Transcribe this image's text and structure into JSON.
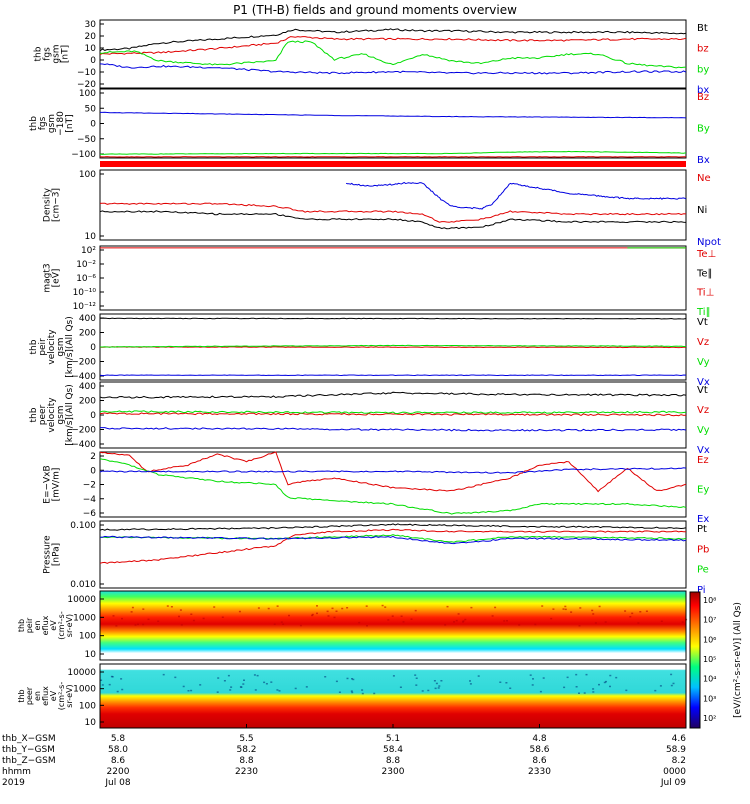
{
  "title": "P1 (TH-B) fields and ground moments overview",
  "colors": {
    "black": "#000000",
    "red": "#e00000",
    "green": "#00dd00",
    "blue": "#0000e0"
  },
  "chart_data": {
    "type": "line",
    "panels": [
      {
        "id": "p1",
        "ylabel": [
          "thb",
          "fgs",
          "gsm",
          "[nT]"
        ],
        "yticks": [
          "30",
          "20",
          "10",
          "0",
          "−10",
          "−20"
        ],
        "legend": [
          {
            "label": "Bt",
            "color": "black"
          },
          {
            "label": "bz",
            "color": "red"
          },
          {
            "label": "by",
            "color": "green"
          },
          {
            "label": "bx",
            "color": "blue"
          }
        ],
        "ylim": [
          -20,
          30
        ],
        "series": [
          {
            "name": "Bt",
            "color": "black",
            "x": [
              0,
              0.05,
              0.1,
              0.2,
              0.3,
              0.33,
              0.4,
              0.5,
              0.55,
              0.6,
              0.7,
              0.8,
              0.9,
              1
            ],
            "y": [
              8,
              9,
              13,
              16,
              19,
              23,
              21,
              23,
              22,
              22,
              21,
              21,
              21,
              20
            ]
          },
          {
            "name": "bz",
            "color": "red",
            "x": [
              0,
              0.1,
              0.2,
              0.3,
              0.33,
              0.4,
              0.5,
              0.6,
              0.7,
              0.8,
              0.9,
              1
            ],
            "y": [
              5,
              6,
              9,
              13,
              18,
              16,
              16,
              16,
              15,
              15,
              16,
              16
            ]
          },
          {
            "name": "by",
            "color": "green",
            "x": [
              0,
              0.06,
              0.1,
              0.2,
              0.3,
              0.32,
              0.36,
              0.4,
              0.45,
              0.5,
              0.55,
              0.6,
              0.65,
              0.7,
              0.75,
              0.8,
              0.85,
              0.9,
              0.95,
              1
            ],
            "y": [
              6,
              7,
              0,
              -3,
              0,
              14,
              14,
              1,
              5,
              -3,
              5,
              0,
              -2,
              2,
              2,
              5,
              5,
              -2,
              -4,
              -5
            ]
          },
          {
            "name": "bx",
            "color": "blue",
            "x": [
              0,
              0.05,
              0.1,
              0.2,
              0.3,
              0.4,
              0.5,
              0.6,
              0.7,
              0.8,
              0.9,
              1
            ],
            "y": [
              -2,
              -5,
              -4,
              -5,
              -8,
              -9,
              -8,
              -9,
              -9,
              -9,
              -8,
              -8
            ]
          }
        ]
      },
      {
        "id": "p2",
        "ylabel": [
          "thb",
          "fgs",
          "gsm",
          "−180",
          "[nT]"
        ],
        "yticks": [
          "100",
          "50",
          "0",
          "−50",
          "−100"
        ],
        "legend": [
          {
            "label": "Bz",
            "color": "red"
          },
          {
            "label": "By",
            "color": "green"
          },
          {
            "label": "Bx",
            "color": "blue"
          }
        ],
        "ylim": [
          -135,
          100
        ],
        "series": [
          {
            "name": "Bx",
            "color": "blue",
            "x": [
              0,
              0.2,
              0.4,
              0.6,
              0.8,
              1
            ],
            "y": [
              20,
              15,
              10,
              6,
              4,
              2
            ]
          },
          {
            "name": "By",
            "color": "green",
            "x": [
              0,
              0.3,
              0.6,
              0.7,
              0.8,
              1
            ],
            "y": [
              -122,
              -120,
              -120,
              -115,
              -113,
              -118
            ]
          },
          {
            "name": "Bz",
            "color": "red",
            "x": [
              0,
              1
            ],
            "y": [
              -131,
              -131
            ]
          }
        ]
      },
      {
        "id": "p3",
        "ylabel": [
          "Density",
          "[cm−3]"
        ],
        "yticks": [
          "100",
          "10"
        ],
        "legend": [
          {
            "label": "Ne",
            "color": "red"
          },
          {
            "label": "Ni",
            "color": "black"
          },
          {
            "label": "Npot",
            "color": "blue"
          }
        ],
        "ylim": [
          0.3,
          3
        ],
        "series": [
          {
            "name": "Npot",
            "color": "blue",
            "x": [
              0.42,
              0.45,
              0.48,
              0.52,
              0.55,
              0.58,
              0.6,
              0.65,
              0.67,
              0.7,
              0.72,
              0.75,
              0.8,
              0.9,
              1
            ],
            "y": [
              2.5,
              2.4,
              2.4,
              2.5,
              2.5,
              1.9,
              1.6,
              1.5,
              1.7,
              2.5,
              2.4,
              2.3,
              2.1,
              1.9,
              1.9
            ]
          },
          {
            "name": "Ne",
            "color": "red",
            "x": [
              0,
              0.1,
              0.2,
              0.3,
              0.35,
              0.4,
              0.5,
              0.55,
              0.58,
              0.6,
              0.65,
              0.67,
              0.7,
              0.8,
              0.9,
              1
            ],
            "y": [
              1.7,
              1.7,
              1.7,
              1.6,
              1.4,
              1.4,
              1.4,
              1.3,
              1.0,
              1.0,
              1.1,
              1.2,
              1.4,
              1.3,
              1.3,
              1.3
            ]
          },
          {
            "name": "Ni",
            "color": "black",
            "x": [
              0,
              0.1,
              0.2,
              0.3,
              0.35,
              0.4,
              0.5,
              0.55,
              0.58,
              0.6,
              0.65,
              0.67,
              0.7,
              0.8,
              0.9,
              1
            ],
            "y": [
              1.4,
              1.4,
              1.3,
              1.3,
              1.1,
              1.1,
              1.1,
              1.0,
              0.75,
              0.75,
              0.8,
              0.9,
              1.1,
              1.0,
              1.0,
              1.0
            ]
          }
        ]
      },
      {
        "id": "p4",
        "ylabel": [
          "magt3",
          "[eV]"
        ],
        "yticks": [
          "10²",
          "10⁻²",
          "10⁻⁶",
          "10⁻¹⁰",
          "10⁻¹²"
        ],
        "legend": [
          {
            "label": "Te⊥",
            "color": "red"
          },
          {
            "label": "Te∥",
            "color": "black"
          },
          {
            "label": "Ti⊥",
            "color": "red"
          },
          {
            "label": "Ti∥",
            "color": "green"
          }
        ],
        "ylim": [
          -14,
          3
        ],
        "series": [
          {
            "name": "Te",
            "color": "red",
            "x": [
              0,
              1
            ],
            "y": [
              2.5,
              2.5
            ]
          },
          {
            "name": "Ti",
            "color": "green",
            "x": [
              0.9,
              1
            ],
            "y": [
              2.5,
              2.5
            ]
          }
        ]
      },
      {
        "id": "p5",
        "ylabel": [
          "thb",
          "peir",
          "velocity",
          "gsm",
          "[km/s](All Qs)"
        ],
        "yticks": [
          "400",
          "200",
          "0",
          "−200",
          "−400"
        ],
        "legend": [
          {
            "label": "Vt",
            "color": "black"
          },
          {
            "label": "Vz",
            "color": "red"
          },
          {
            "label": "Vy",
            "color": "green"
          },
          {
            "label": "Vx",
            "color": "blue"
          }
        ],
        "ylim": [
          -450,
          450
        ],
        "series": [
          {
            "name": "Vt",
            "color": "black",
            "x": [
              0,
              1
            ],
            "y": [
              390,
              385
            ]
          },
          {
            "name": "Vz",
            "color": "red",
            "x": [
              0,
              1
            ],
            "y": [
              0,
              -5
            ]
          },
          {
            "name": "Vy",
            "color": "green",
            "x": [
              0,
              0.2,
              0.5,
              0.8,
              1
            ],
            "y": [
              0,
              10,
              20,
              15,
              10
            ]
          },
          {
            "name": "Vx",
            "color": "blue",
            "x": [
              0,
              1
            ],
            "y": [
              -385,
              -385
            ]
          }
        ]
      },
      {
        "id": "p6",
        "ylabel": [
          "thb",
          "peer",
          "velocity",
          "gsm",
          "[km/s](All Qs)"
        ],
        "yticks": [
          "400",
          "200",
          "0",
          "−200",
          "−400"
        ],
        "legend": [
          {
            "label": "Vt",
            "color": "black"
          },
          {
            "label": "Vz",
            "color": "red"
          },
          {
            "label": "Vy",
            "color": "green"
          },
          {
            "label": "Vx",
            "color": "blue"
          }
        ],
        "ylim": [
          -450,
          450
        ],
        "series": [
          {
            "name": "Vt",
            "color": "black",
            "x": [
              0,
              0.3,
              0.5,
              0.7,
              1
            ],
            "y": [
              240,
              250,
              300,
              280,
              270
            ]
          },
          {
            "name": "Vz",
            "color": "red",
            "x": [
              0,
              0.5,
              1
            ],
            "y": [
              20,
              10,
              0
            ]
          },
          {
            "name": "Vy",
            "color": "green",
            "x": [
              0,
              0.5,
              1
            ],
            "y": [
              50,
              30,
              40
            ]
          },
          {
            "name": "Vx",
            "color": "blue",
            "x": [
              0,
              0.3,
              0.5,
              0.7,
              1
            ],
            "y": [
              -180,
              -190,
              -200,
              -210,
              -200
            ]
          }
        ]
      },
      {
        "id": "p7",
        "ylabel": [
          "E=−VxB",
          "[mV/m]"
        ],
        "yticks": [
          "2",
          "0",
          "−2",
          "−4",
          "−6"
        ],
        "legend": [
          {
            "label": "Ez",
            "color": "red"
          },
          {
            "label": "Ey",
            "color": "green"
          },
          {
            "label": "Ex",
            "color": "blue"
          }
        ],
        "ylim": [
          -7,
          3
        ],
        "series": [
          {
            "name": "Ez",
            "color": "red",
            "x": [
              0,
              0.05,
              0.08,
              0.15,
              0.2,
              0.25,
              0.3,
              0.32,
              0.35,
              0.4,
              0.5,
              0.6,
              0.7,
              0.75,
              0.8,
              0.85,
              0.9,
              0.95,
              1
            ],
            "y": [
              3,
              2.5,
              0,
              1,
              2.7,
              1.5,
              3,
              -2,
              -1.5,
              -1,
              -2.5,
              -3,
              -1,
              1,
              1.5,
              -3,
              0.5,
              -3,
              -2
            ]
          },
          {
            "name": "Ey",
            "color": "green",
            "x": [
              0,
              0.05,
              0.1,
              0.2,
              0.3,
              0.32,
              0.4,
              0.5,
              0.6,
              0.7,
              0.75,
              0.8,
              0.9,
              1
            ],
            "y": [
              2,
              1,
              -0.5,
              -1.5,
              -2,
              -4,
              -4.5,
              -5,
              -6.5,
              -6,
              -5,
              -5,
              -5,
              -5.5
            ]
          },
          {
            "name": "Ex",
            "color": "blue",
            "x": [
              0,
              0.3,
              0.5,
              0.7,
              0.8,
              1
            ],
            "y": [
              0,
              0,
              0,
              -0.2,
              0.3,
              0.5
            ]
          }
        ]
      },
      {
        "id": "p8",
        "ylabel": [
          "Pressure",
          "[nPa]"
        ],
        "yticks": [
          "0.100",
          "0.010"
        ],
        "legend": [
          {
            "label": "Pt",
            "color": "black"
          },
          {
            "label": "Pb",
            "color": "red"
          },
          {
            "label": "Pe",
            "color": "green"
          },
          {
            "label": "Pi",
            "color": "blue"
          }
        ],
        "ylim": [
          -2.4,
          -0.5
        ],
        "series": [
          {
            "name": "Pt",
            "color": "black",
            "x": [
              0,
              0.3,
              0.5,
              0.7,
              1
            ],
            "y": [
              -0.75,
              -0.7,
              -0.6,
              -0.65,
              -0.7
            ]
          },
          {
            "name": "Pb",
            "color": "red",
            "x": [
              0,
              0.1,
              0.2,
              0.3,
              0.33,
              0.4,
              0.5,
              0.6,
              0.7,
              0.8,
              1
            ],
            "y": [
              -1.7,
              -1.6,
              -1.4,
              -1.2,
              -0.9,
              -0.8,
              -0.75,
              -0.8,
              -0.8,
              -0.8,
              -0.8
            ]
          },
          {
            "name": "Pe",
            "color": "green",
            "x": [
              0,
              0.3,
              0.5,
              0.6,
              0.7,
              0.8,
              1
            ],
            "y": [
              -0.95,
              -1.0,
              -0.9,
              -1.1,
              -0.95,
              -0.95,
              -1.0
            ]
          },
          {
            "name": "Pi",
            "color": "blue",
            "x": [
              0,
              0.3,
              0.5,
              0.6,
              0.7,
              0.8,
              1
            ],
            "y": [
              -0.95,
              -1.0,
              -0.95,
              -1.15,
              -1.0,
              -1.0,
              -1.05
            ]
          }
        ]
      }
    ],
    "spectrograms": [
      {
        "id": "s1",
        "ylabel": [
          "thb",
          "peir",
          "en",
          "eflux",
          "eV",
          "(cm²-s-",
          "sr-eV)"
        ],
        "yticks": [
          "10000",
          "1000",
          "100",
          "10"
        ],
        "ylim": [
          1,
          4.5
        ]
      },
      {
        "id": "s2",
        "ylabel": [
          "thb",
          "peer",
          "en",
          "eflux",
          "eV",
          "(cm²-s-",
          "sr-eV)"
        ],
        "yticks": [
          "10000",
          "1000",
          "100",
          "10"
        ],
        "ylim": [
          0.7,
          4.3
        ]
      }
    ],
    "colorbar": {
      "label": "[eV/(cm²-s-sr-eV)] (All Qs)",
      "ticks": [
        "10⁸",
        "10⁷",
        "10⁶",
        "10⁵",
        "10⁴",
        "10³",
        "10²"
      ]
    },
    "x_axis": {
      "rows": [
        {
          "label": "thb_X−GSM",
          "values": [
            "5.8",
            "5.5",
            "5.1",
            "4.8",
            "4.6"
          ]
        },
        {
          "label": "thb_Y−GSM",
          "values": [
            "58.0",
            "58.2",
            "58.4",
            "58.6",
            "58.9"
          ]
        },
        {
          "label": "thb_Z−GSM",
          "values": [
            "8.6",
            "8.8",
            "8.8",
            "8.6",
            "8.2"
          ]
        },
        {
          "label": "hhmm",
          "values": [
            "2200",
            "2230",
            "2300",
            "2330",
            "0000"
          ]
        },
        {
          "label": "2019",
          "values": [
            "Jul 08",
            "",
            "",
            "",
            "Jul 09"
          ]
        }
      ]
    }
  }
}
